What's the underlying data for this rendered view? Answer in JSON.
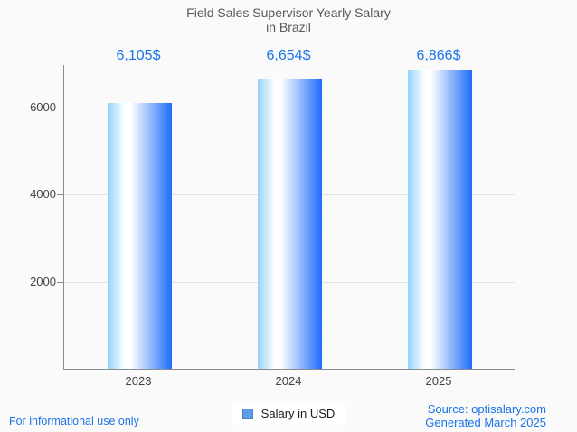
{
  "page": {
    "background": "#fafafa",
    "accent_blue": "#1a73e8",
    "footer_left": "For informational use only",
    "footer_right_line1": "Source: optisalary.com",
    "footer_right_line2": "Generated March 2025"
  },
  "legend": {
    "marker_fill": "#5b9ce8",
    "marker_border": "#4d7fc0",
    "label": "Salary in USD"
  },
  "chart_data": {
    "type": "bar",
    "title_line1": "Field Sales Supervisor Yearly Salary",
    "title_line2": "in Brazil",
    "categories": [
      "2023",
      "2024",
      "2025"
    ],
    "values": [
      6105,
      6654,
      6866
    ],
    "value_labels": [
      "6,105$",
      "6,654$",
      "6,866$"
    ],
    "series": [
      {
        "name": "Salary in USD",
        "values": [
          6105,
          6654,
          6866
        ]
      }
    ],
    "xlabel": "",
    "ylabel": "",
    "y_ticks": [
      2000,
      4000,
      6000
    ],
    "ylim": [
      0,
      6970
    ],
    "grid": true,
    "legend_position": "bottom",
    "bar_gradient": [
      "#93d4f9",
      "#ffffff",
      "#1e6dfa"
    ],
    "title_color": "#58595b",
    "value_label_color": "#1a73e8",
    "axis_color": "#8a8d90",
    "grid_color": "#e3e3e3"
  }
}
